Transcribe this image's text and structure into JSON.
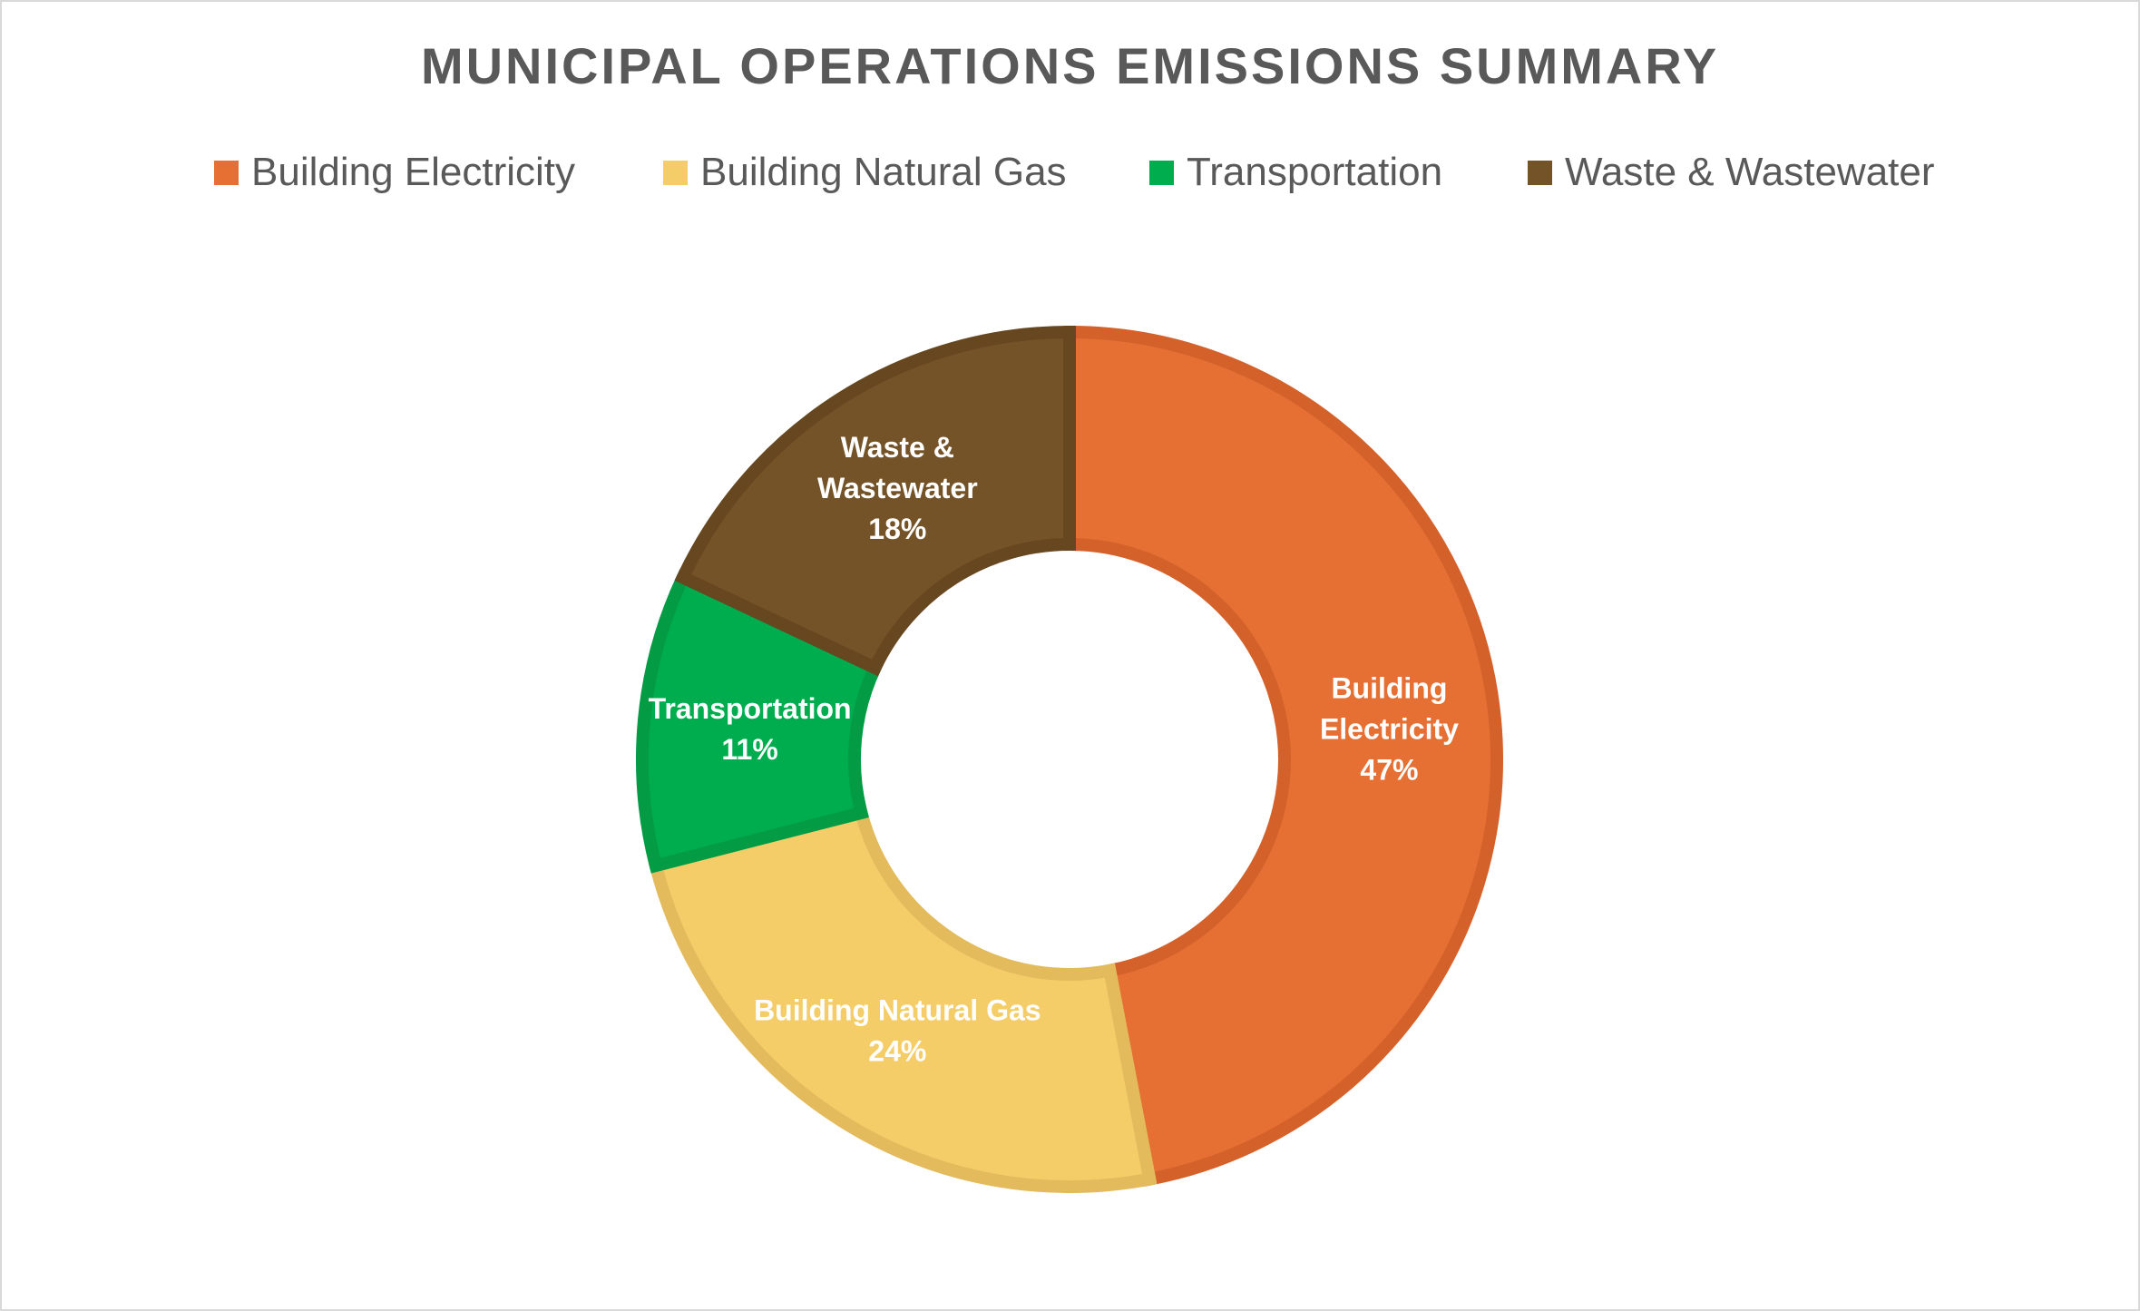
{
  "chart_data": {
    "type": "pie",
    "variant": "donut",
    "title": "MUNICIPAL OPERATIONS EMISSIONS SUMMARY",
    "legend_position": "top",
    "categories": [
      "Building Electricity",
      "Building Natural Gas",
      "Transportation",
      "Waste & Wastewater"
    ],
    "values": [
      47,
      24,
      11,
      18
    ],
    "value_labels": [
      "47%",
      "24%",
      "11%",
      "18%"
    ],
    "slice_label_lines": [
      [
        "Building",
        "Electricity",
        "47%"
      ],
      [
        "Building Natural Gas",
        "24%"
      ],
      [
        "Transportation",
        "11%"
      ],
      [
        "Waste &",
        "Wastewater",
        "18%"
      ]
    ],
    "colors": [
      "#E67034",
      "#F5CD68",
      "#00AD4E",
      "#755328"
    ],
    "border_colors": [
      "#D4612A",
      "#E3BB5C",
      "#049B45",
      "#664720"
    ]
  }
}
